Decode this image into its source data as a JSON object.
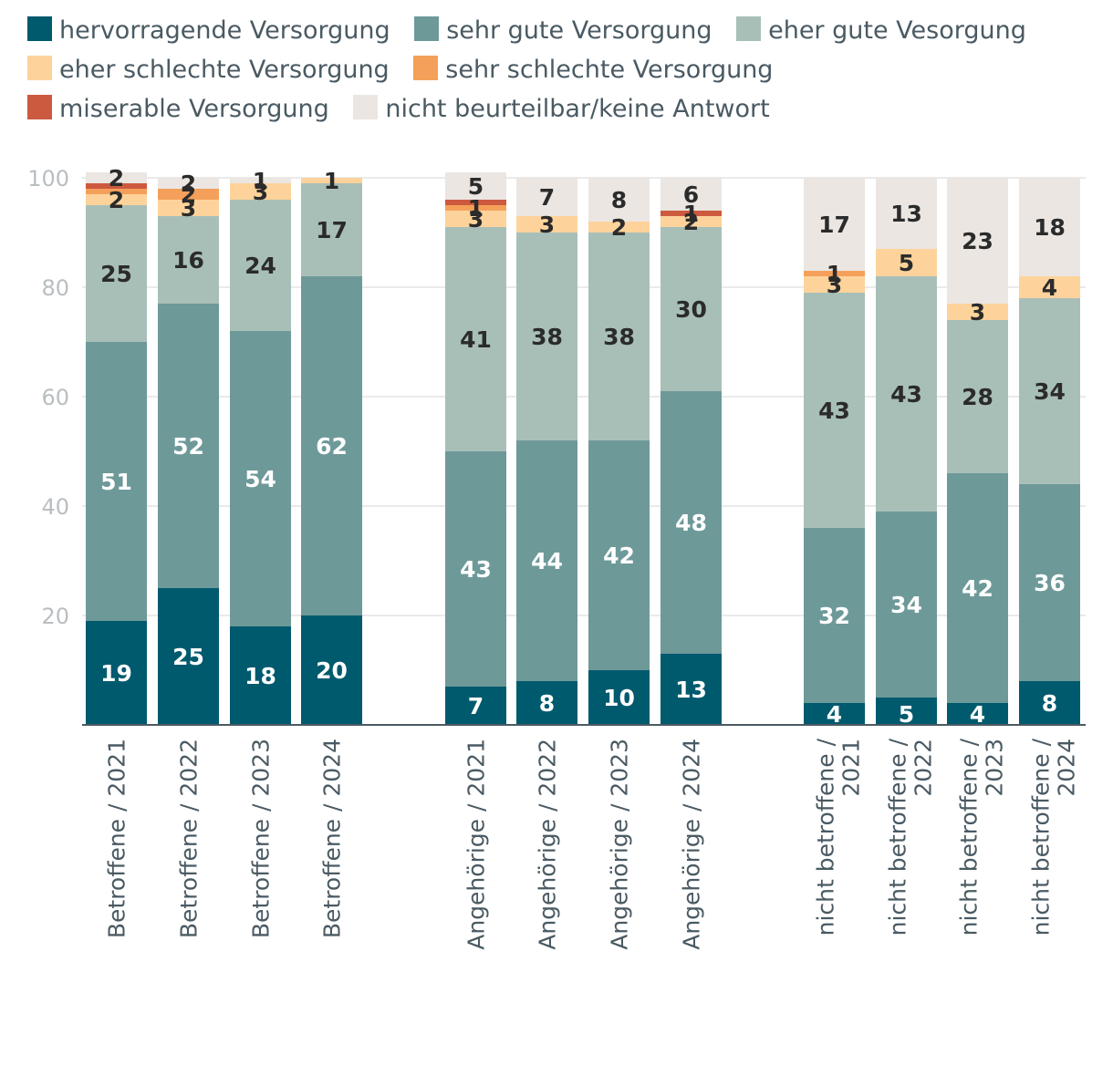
{
  "chart_data": {
    "type": "bar",
    "stacked": true,
    "orientation": "vertical",
    "legend_position": "top",
    "ylim": [
      0,
      100
    ],
    "yticks": [
      20,
      40,
      60,
      80,
      100
    ],
    "grid": true,
    "categories": [
      {
        "line1": "Betroffene / 2021",
        "line2": ""
      },
      {
        "line1": "Betroffene / 2022",
        "line2": ""
      },
      {
        "line1": "Betroffene / 2023",
        "line2": ""
      },
      {
        "line1": "Betroffene / 2024",
        "line2": ""
      },
      {
        "line1": "Angehörige / 2021",
        "line2": ""
      },
      {
        "line1": "Angehörige / 2022",
        "line2": ""
      },
      {
        "line1": "Angehörige / 2023",
        "line2": ""
      },
      {
        "line1": "Angehörige / 2024",
        "line2": ""
      },
      {
        "line1": "nicht betroffene /",
        "line2": "2021"
      },
      {
        "line1": "nicht betroffene /",
        "line2": "2022"
      },
      {
        "line1": "nicht betroffene /",
        "line2": "2023"
      },
      {
        "line1": "nicht betroffene /",
        "line2": "2024"
      }
    ],
    "series": [
      {
        "name": "hervorragende Versorgung",
        "color": "#005a6e",
        "label_color": "#ffffff",
        "values": [
          19,
          25,
          18,
          20,
          7,
          8,
          10,
          13,
          4,
          5,
          4,
          8
        ]
      },
      {
        "name": "sehr gute Versorgung",
        "color": "#6e9999",
        "label_color": "#ffffff",
        "values": [
          51,
          52,
          54,
          62,
          43,
          44,
          42,
          48,
          32,
          34,
          42,
          36
        ]
      },
      {
        "name": "eher gute Vesorgung",
        "color": "#a8bfb8",
        "label_color": "#2b2b2b",
        "values": [
          25,
          16,
          24,
          17,
          41,
          38,
          38,
          30,
          43,
          43,
          28,
          34
        ]
      },
      {
        "name": "eher schlechte Versorgung",
        "color": "#fdd39b",
        "label_color": "#2b2b2b",
        "values": [
          2,
          3,
          3,
          1,
          3,
          3,
          2,
          2,
          3,
          5,
          3,
          4
        ]
      },
      {
        "name": "sehr schlechte Versorgung",
        "color": "#f5a05a",
        "label_color": "#2b2b2b",
        "values": [
          1,
          2,
          0,
          0,
          1,
          0,
          0,
          0,
          1,
          0,
          0,
          0
        ]
      },
      {
        "name": "miserable Versorgung",
        "color": "#cc5a3f",
        "label_color": "#2b2b2b",
        "values": [
          1,
          0,
          0,
          0,
          1,
          0,
          0,
          1,
          0,
          0,
          0,
          0
        ]
      },
      {
        "name": "nicht beurteilbar/keine Antwort",
        "color": "#ebe6e2",
        "label_color": "#2b2b2b",
        "values": [
          2,
          2,
          1,
          0,
          5,
          7,
          8,
          6,
          17,
          13,
          23,
          18
        ]
      }
    ],
    "data_labels": [
      [
        "19",
        "51",
        "25",
        "2",
        "",
        "",
        "2"
      ],
      [
        "25",
        "52",
        "16",
        "3",
        "2",
        "",
        "2"
      ],
      [
        "18",
        "54",
        "24",
        "3",
        "",
        "",
        "1"
      ],
      [
        "20",
        "62",
        "17",
        "1",
        "",
        "",
        ""
      ],
      [
        "7",
        "43",
        "41",
        "3",
        "1",
        "",
        "5"
      ],
      [
        "8",
        "44",
        "38",
        "3",
        "",
        "",
        "7"
      ],
      [
        "10",
        "42",
        "38",
        "2",
        "",
        "",
        "8"
      ],
      [
        "13",
        "48",
        "30",
        "2",
        "",
        "1",
        "6"
      ],
      [
        "4",
        "32",
        "43",
        "3",
        "1",
        "",
        "17"
      ],
      [
        "5",
        "34",
        "43",
        "5",
        "",
        "",
        "13"
      ],
      [
        "4",
        "42",
        "28",
        "3",
        "",
        "",
        "23"
      ],
      [
        "8",
        "36",
        "34",
        "4",
        "",
        "",
        "18"
      ]
    ]
  }
}
